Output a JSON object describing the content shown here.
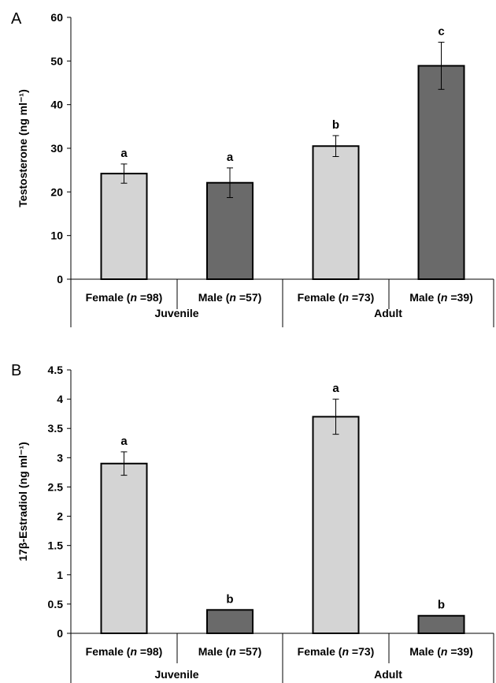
{
  "figure": {
    "panels": [
      "A",
      "B"
    ]
  },
  "colors": {
    "female": "#d4d4d4",
    "male": "#6a6a6a",
    "axis": "#000000"
  },
  "chart_data": [
    {
      "type": "bar",
      "panel": "A",
      "ylabel": "Testosterone (ng ml⁻¹)",
      "ylim": [
        0,
        60
      ],
      "yticks": [
        "0",
        "10",
        "20",
        "30",
        "40",
        "50",
        "60"
      ],
      "categories": [
        {
          "sex": "Female",
          "n": "98",
          "group": "Juvenile"
        },
        {
          "sex": "Male",
          "n": "57",
          "group": "Juvenile"
        },
        {
          "sex": "Female",
          "n": "73",
          "group": "Adult"
        },
        {
          "sex": "Male",
          "n": "39",
          "group": "Adult"
        }
      ],
      "groups": [
        "Juvenile",
        "Adult"
      ],
      "values": [
        24.2,
        22.1,
        30.5,
        48.9
      ],
      "errors": [
        2.2,
        3.4,
        2.4,
        5.4
      ],
      "significance": [
        "a",
        "a",
        "b",
        "c"
      ],
      "grid": false
    },
    {
      "type": "bar",
      "panel": "B",
      "ylabel": "17β-Estradiol (ng ml⁻¹)",
      "ylim": [
        0,
        4.5
      ],
      "yticks": [
        "0",
        "0.5",
        "1",
        "1.5",
        "2",
        "2.5",
        "3",
        "3.5",
        "4",
        "4.5"
      ],
      "categories": [
        {
          "sex": "Female",
          "n": "98",
          "group": "Juvenile"
        },
        {
          "sex": "Male",
          "n": "57",
          "group": "Juvenile"
        },
        {
          "sex": "Female",
          "n": "73",
          "group": "Adult"
        },
        {
          "sex": "Male",
          "n": "39",
          "group": "Adult"
        }
      ],
      "groups": [
        "Juvenile",
        "Adult"
      ],
      "values": [
        2.9,
        0.4,
        3.7,
        0.3
      ],
      "errors": [
        0.2,
        0.0,
        0.3,
        0.0
      ],
      "significance": [
        "a",
        "b",
        "a",
        "b"
      ],
      "grid": false
    }
  ]
}
